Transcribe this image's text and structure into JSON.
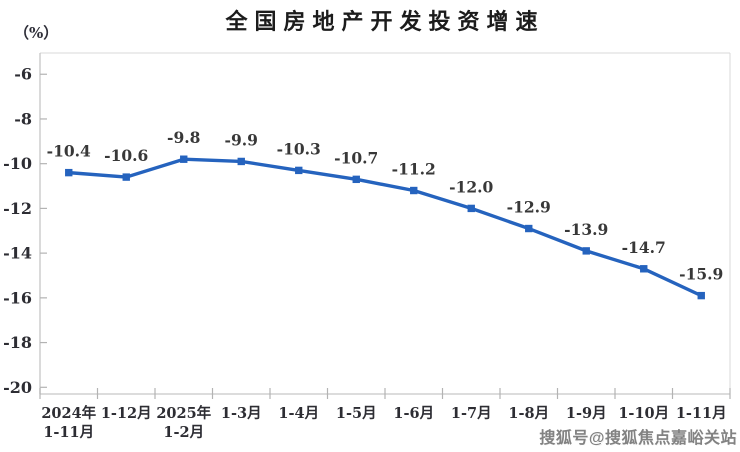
{
  "chart_data": {
    "type": "line",
    "title": "全国房地产开发投资增速",
    "unit_label": "（%）",
    "categories": [
      "2024年\n1-11月",
      "1-12月",
      "2025年\n1-2月",
      "1-3月",
      "1-4月",
      "1-5月",
      "1-6月",
      "1-7月",
      "1-8月",
      "1-9月",
      "1-10月",
      "1-11月"
    ],
    "series": [
      {
        "name": "全国房地产开发投资增速",
        "values": [
          -10.4,
          -10.6,
          -9.8,
          -9.9,
          -10.3,
          -10.7,
          -11.2,
          -12.0,
          -12.9,
          -13.9,
          -14.7,
          -15.9
        ],
        "color": "#2563be",
        "marker": "square"
      }
    ],
    "data_labels": [
      "-10.4",
      "-10.6",
      "-9.8",
      "-9.9",
      "-10.3",
      "-10.7",
      "-11.2",
      "-12.0",
      "-12.9",
      "-13.9",
      "-14.7",
      "-15.9"
    ],
    "y_ticks": [
      {
        "label": "-6",
        "value": -6
      },
      {
        "label": "-8",
        "value": -8
      },
      {
        "label": "-10",
        "value": -10
      },
      {
        "label": "-12",
        "value": -12
      },
      {
        "label": "-14",
        "value": -14
      },
      {
        "label": "-16",
        "value": -16
      },
      {
        "label": "-18",
        "value": -18
      },
      {
        "label": "-20",
        "value": -20
      }
    ],
    "ylim": [
      -20.3,
      -5.05
    ],
    "grid": false,
    "legend": "none"
  },
  "style_colors": {
    "line": "#2563be",
    "axis": "#c6c6c6",
    "plot_border": "#d9d9d9",
    "tick": "#b3b3b3",
    "tick_label": "#2d2d33",
    "data_label": "#383838",
    "title": "#1c1c1c"
  },
  "watermark": {
    "text": "搜狐号@搜狐焦点嘉峪关站"
  }
}
